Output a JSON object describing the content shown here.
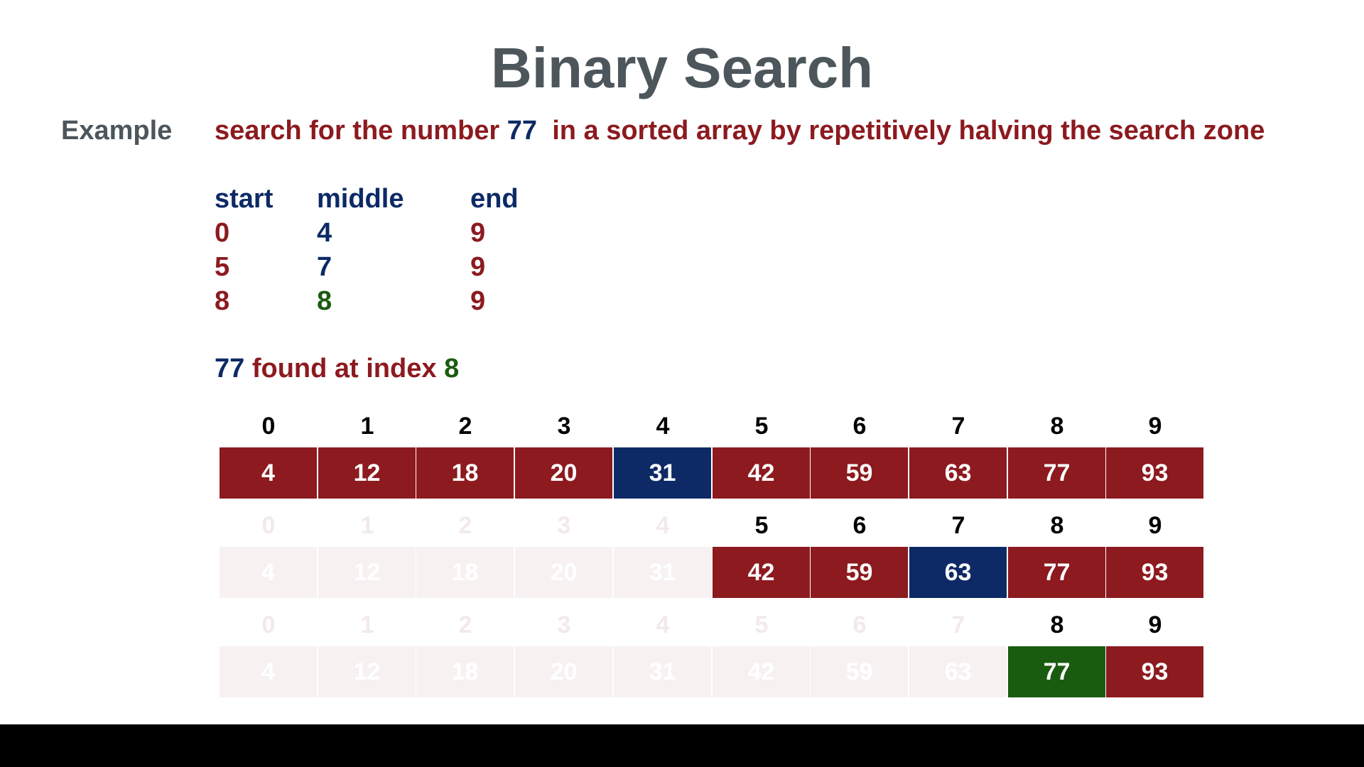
{
  "title": "Binary Search",
  "example_label": "Example",
  "description": {
    "part1": "search for the number",
    "target": "77",
    "part2": "in a sorted array by repetitively halving the search zone"
  },
  "columns": {
    "start": "start",
    "middle": "middle",
    "end": "end"
  },
  "steps": [
    {
      "start": "0",
      "middle": "4",
      "end": "9",
      "middle_color": "navy"
    },
    {
      "start": "5",
      "middle": "7",
      "end": "9",
      "middle_color": "navy"
    },
    {
      "start": "8",
      "middle": "8",
      "end": "9",
      "middle_color": "green"
    }
  ],
  "result": {
    "value": "77",
    "text": "found at index",
    "index": "8"
  },
  "colors": {
    "active": "#8c1a1f",
    "middle": "#0d2a66",
    "found": "#1a5c0f",
    "inactive": "#f8f1f1",
    "title": "#4c565b"
  },
  "array": {
    "indices": [
      "0",
      "1",
      "2",
      "3",
      "4",
      "5",
      "6",
      "7",
      "8",
      "9"
    ],
    "values": [
      "4",
      "12",
      "18",
      "20",
      "31",
      "42",
      "59",
      "63",
      "77",
      "93"
    ]
  },
  "rows": [
    {
      "active_from": 0,
      "active_to": 9,
      "middle": 4,
      "middle_state": "middle"
    },
    {
      "active_from": 5,
      "active_to": 9,
      "middle": 7,
      "middle_state": "middle"
    },
    {
      "active_from": 8,
      "active_to": 9,
      "middle": 8,
      "middle_state": "found"
    }
  ]
}
